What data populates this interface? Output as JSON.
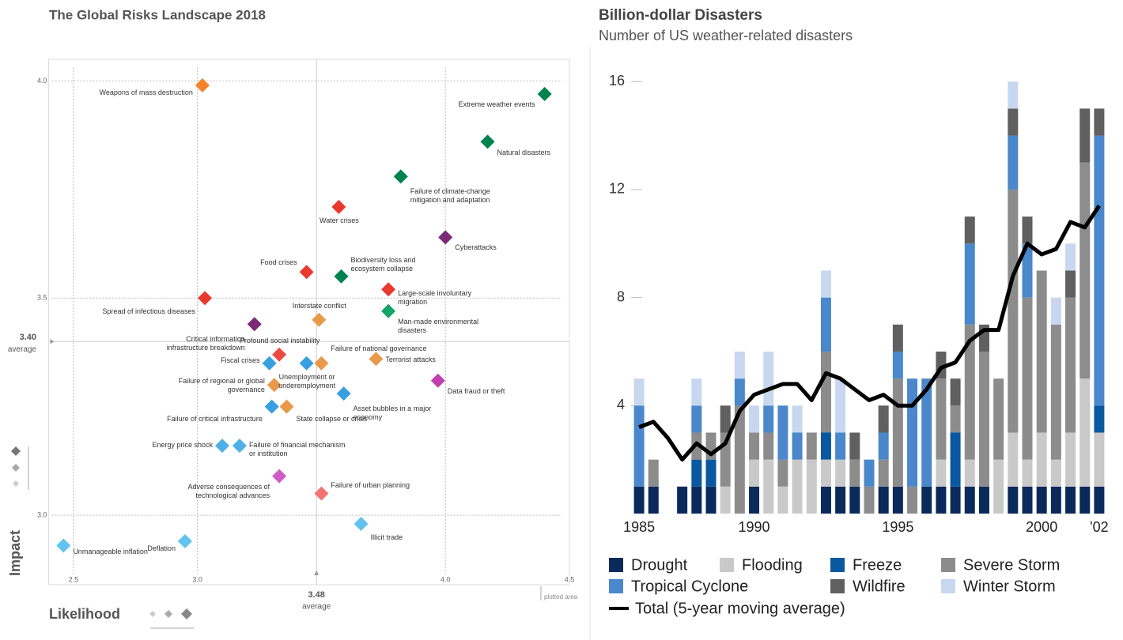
{
  "chart_data": [
    {
      "type": "scatter",
      "title": "The Global Risks Landscape 2018",
      "x_label": "Likelihood",
      "y_label": "Impact",
      "xlim": [
        2.4,
        4.5
      ],
      "ylim": [
        2.84,
        4.05
      ],
      "xticks": [
        2.5,
        {
          "value": 3,
          "label": "3.0"
        },
        {
          "value": 4,
          "label": "4.0"
        },
        4.5
      ],
      "yticks": [
        {
          "value": 3,
          "label": "3.0"
        },
        3.5,
        {
          "value": 4,
          "label": "4.0"
        }
      ],
      "x_average": 3.48,
      "y_average": {
        "value": 3.4,
        "label": "3.40"
      },
      "average_label": "average",
      "annotation": "plotted area",
      "grid": true,
      "labels": [
        "Weapons of mass destruction",
        "Extreme weather events",
        "Natural disasters",
        "Failure of climate-change mitigation and adaptation",
        "Water crises",
        "Cyberattacks",
        "Food crises",
        "Biodiversity loss and ecosystem collapse",
        "Large-scale involuntary migration",
        "Spread of infectious diseases",
        "Man-made environmental disasters",
        "Interstate conflict",
        "Critical information infrastructure breakdown",
        "Profound social instability",
        "Fiscal crises",
        "Unemployment or underemployment",
        "Failure of national governance",
        "Terrorist attacks",
        "Data fraud or theft",
        "Failure of regional or global governance",
        "Asset bubbles in a major economy",
        "Failure of critical infrastructure",
        "State collapse or crisis",
        "Energy price shock",
        "Failure of financial mechanism or institution",
        "Adverse consequences of technological advances",
        "Failure of urban planning",
        "Illicit trade",
        "Deflation",
        "Unmanageable inflation"
      ],
      "x": [
        3.02,
        4.4,
        4.17,
        3.82,
        3.57,
        4.0,
        3.44,
        3.58,
        3.77,
        3.03,
        3.77,
        3.49,
        3.23,
        3.33,
        3.29,
        3.44,
        3.5,
        3.72,
        3.97,
        3.31,
        3.59,
        3.3,
        3.36,
        3.1,
        3.17,
        3.33,
        3.5,
        3.66,
        2.95,
        2.46
      ],
      "values": [
        3.99,
        3.97,
        3.86,
        3.78,
        3.71,
        3.64,
        3.56,
        3.55,
        3.52,
        3.5,
        3.47,
        3.45,
        3.44,
        3.37,
        3.35,
        3.35,
        3.35,
        3.36,
        3.31,
        3.3,
        3.28,
        3.25,
        3.25,
        3.16,
        3.16,
        3.09,
        3.05,
        2.98,
        2.94,
        2.93
      ],
      "colors": [
        "#f5822a",
        "#00834f",
        "#00834f",
        "#00834f",
        "#e8392f",
        "#7b2a78",
        "#e8392f",
        "#00834f",
        "#e8392f",
        "#e8392f",
        "#12a468",
        "#e89a4a",
        "#7b2a78",
        "#ee4a44",
        "#3a9fe0",
        "#3a9fe0",
        "#e89a4a",
        "#e89a4a",
        "#c23fb2",
        "#e89a4a",
        "#3a9fe0",
        "#3a9fe0",
        "#e89a4a",
        "#4fb0e8",
        "#4fb0e8",
        "#cf5cc6",
        "#f27474",
        "#62c2f0",
        "#62c2f0",
        "#62c2f0"
      ]
    },
    {
      "type": "bar",
      "stacked": true,
      "title": "Billion-dollar Disasters",
      "subtitle": "Number of US weather-related disasters",
      "categories": [
        "1985",
        null,
        null,
        null,
        null,
        null,
        null,
        null,
        "1990",
        null,
        null,
        null,
        null,
        null,
        null,
        null,
        null,
        null,
        "1995",
        null,
        null,
        null,
        null,
        null,
        null,
        null,
        null,
        null,
        "2000",
        null,
        null,
        null,
        "'02"
      ],
      "ylim": [
        0,
        17.5
      ],
      "yticks": [
        4,
        8,
        12,
        16
      ],
      "grid": false,
      "series": [
        {
          "name": "Drought",
          "color": "#0b2a5c",
          "values": [
            1,
            1,
            0,
            1,
            1,
            1,
            0,
            0,
            1,
            0,
            0,
            0,
            0,
            1,
            1,
            1,
            0,
            1,
            1,
            0,
            1,
            1,
            1,
            1,
            1,
            0,
            1,
            1,
            1,
            1,
            1,
            1,
            1
          ]
        },
        {
          "name": "Flooding",
          "color": "#c9c9c9",
          "values": [
            0,
            0,
            0,
            0,
            0,
            0,
            1,
            0,
            1,
            2,
            1,
            2,
            2,
            1,
            1,
            0,
            0,
            0,
            0,
            0,
            0,
            1,
            0,
            1,
            0,
            2,
            2,
            1,
            2,
            1,
            2,
            4,
            2
          ]
        },
        {
          "name": "Freeze",
          "color": "#0a58a0",
          "values": [
            0,
            0,
            0,
            0,
            1,
            1,
            0,
            0,
            0,
            0,
            0,
            0,
            0,
            1,
            0,
            0,
            0,
            0,
            0,
            0,
            0,
            0,
            2,
            0,
            0,
            0,
            0,
            0,
            0,
            0,
            0,
            0,
            1
          ]
        },
        {
          "name": "Severe Storm",
          "color": "#8c8c8c",
          "values": [
            0,
            1,
            0,
            0,
            1,
            1,
            2,
            4,
            1,
            1,
            1,
            0,
            1,
            3,
            0,
            1,
            1,
            1,
            4,
            1,
            0,
            3,
            1,
            5,
            5,
            3,
            9,
            6,
            6,
            5,
            5,
            8,
            0
          ]
        },
        {
          "name": "Tropical Cyclone",
          "color": "#4a87cb",
          "values": [
            3,
            0,
            0,
            0,
            1,
            0,
            0,
            1,
            0,
            1,
            2,
            1,
            0,
            2,
            1,
            0,
            1,
            1,
            1,
            4,
            4,
            0,
            0,
            3,
            0,
            0,
            2,
            2,
            0,
            0,
            0,
            0,
            10
          ]
        },
        {
          "name": "Wildfire",
          "color": "#606060",
          "values": [
            0,
            0,
            0,
            0,
            0,
            0,
            1,
            0,
            0,
            0,
            0,
            0,
            0,
            0,
            0,
            1,
            0,
            1,
            1,
            0,
            0,
            1,
            1,
            1,
            1,
            0,
            1,
            1,
            0,
            0,
            1,
            2,
            1
          ]
        },
        {
          "name": "Winter Storm",
          "color": "#c8d7f0",
          "values": [
            1,
            0,
            0,
            0,
            1,
            0,
            0,
            1,
            1,
            2,
            0,
            1,
            0,
            1,
            2,
            0,
            0,
            0,
            0,
            0,
            0,
            0,
            0,
            0,
            0,
            0,
            1,
            0,
            0,
            1,
            1,
            0,
            0
          ]
        }
      ],
      "line": {
        "name": "Total (5-year moving average)",
        "color": "#000000",
        "values": [
          3.2,
          3.4,
          2.8,
          2.0,
          2.6,
          2.2,
          2.6,
          3.8,
          4.4,
          4.6,
          4.8,
          4.8,
          4.2,
          5.2,
          5.0,
          4.6,
          4.2,
          4.4,
          4.0,
          4.0,
          4.6,
          5.4,
          5.6,
          6.4,
          6.8,
          6.8,
          8.8,
          10.0,
          9.6,
          9.8,
          10.8,
          10.6,
          11.4
        ]
      }
    }
  ]
}
